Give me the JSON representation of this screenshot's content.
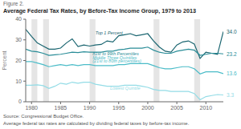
{
  "chart_data": {
    "type": "line",
    "figure_label": "Figure 2.",
    "title": "Average Federal Tax Rates, by Before-Tax Income Group, 1979 to 2013",
    "ylabel": "Percent",
    "notes": [
      "Source: Congressional Budget Office.",
      "Average federal tax rates are calculated by dividing federal taxes by before-tax income."
    ],
    "xlim": [
      1979,
      2013
    ],
    "xticks": [
      1980,
      1985,
      1990,
      1995,
      2000,
      2005,
      2010
    ],
    "ylim": [
      0,
      40
    ],
    "yticks": [
      0,
      10,
      20,
      30,
      40
    ],
    "grid": false,
    "data_labels": true,
    "recession_bands": [
      [
        1980,
        1981
      ],
      [
        1982,
        1983
      ],
      [
        1990,
        1991
      ],
      [
        2001,
        2002
      ],
      [
        2008,
        2009
      ]
    ],
    "x": [
      1979,
      1980,
      1981,
      1982,
      1983,
      1984,
      1985,
      1986,
      1987,
      1988,
      1989,
      1990,
      1991,
      1992,
      1993,
      1994,
      1995,
      1996,
      1997,
      1998,
      1999,
      2000,
      2001,
      2002,
      2003,
      2004,
      2005,
      2006,
      2007,
      2008,
      2009,
      2010,
      2011,
      2012,
      2013
    ],
    "series": [
      {
        "name": "Top 1 Percent",
        "color": "#1a6570",
        "values": [
          35.1,
          31.7,
          28.5,
          27.0,
          25.5,
          25.5,
          26.0,
          28.5,
          30.5,
          26.8,
          27.5,
          27.0,
          27.5,
          27.8,
          29.5,
          29.0,
          32.0,
          32.5,
          33.0,
          32.0,
          32.5,
          33.0,
          29.5,
          26.5,
          24.5,
          24.0,
          27.5,
          29.0,
          29.5,
          28.0,
          21.0,
          24.0,
          23.5,
          23.0,
          34.0
        ],
        "value_labels": [
          null,
          null,
          null,
          null,
          null,
          null,
          null,
          null,
          null,
          null,
          null,
          null,
          null,
          null,
          null,
          null,
          null,
          null,
          null,
          null,
          null,
          null,
          null,
          null,
          null,
          null,
          null,
          null,
          null,
          null,
          null,
          null,
          null,
          null,
          "34.0"
        ]
      },
      {
        "name": "81st to 99th Percentiles",
        "color": "#2a8d98",
        "values": [
          25.5,
          24.5,
          24.2,
          23.5,
          22.5,
          22.8,
          23.0,
          23.5,
          24.0,
          23.8,
          24.2,
          24.0,
          24.0,
          24.0,
          24.5,
          24.5,
          25.2,
          25.5,
          26.0,
          26.0,
          26.0,
          26.5,
          25.0,
          24.0,
          23.5,
          23.5,
          24.5,
          25.0,
          25.5,
          25.0,
          22.5,
          23.0,
          23.5,
          23.5,
          23.2
        ],
        "value_labels": [
          null,
          null,
          null,
          null,
          null,
          null,
          null,
          null,
          null,
          null,
          null,
          null,
          null,
          null,
          null,
          null,
          null,
          null,
          null,
          null,
          null,
          null,
          null,
          null,
          null,
          null,
          null,
          null,
          null,
          null,
          null,
          null,
          null,
          null,
          "23.2"
        ]
      },
      {
        "name": "Middle Three Quintiles",
        "color": "#4bbcc8",
        "values": [
          19.5,
          19.5,
          18.8,
          18.0,
          17.0,
          17.5,
          18.0,
          17.5,
          18.0,
          17.5,
          18.0,
          18.0,
          17.5,
          17.5,
          17.5,
          17.5,
          18.0,
          18.0,
          18.5,
          18.5,
          18.5,
          18.5,
          17.5,
          16.5,
          16.0,
          16.0,
          16.5,
          17.0,
          17.0,
          16.0,
          13.5,
          14.5,
          14.5,
          14.5,
          13.6
        ],
        "value_labels": [
          null,
          null,
          null,
          null,
          null,
          null,
          null,
          null,
          null,
          null,
          null,
          null,
          null,
          null,
          null,
          null,
          null,
          null,
          null,
          null,
          null,
          null,
          null,
          null,
          null,
          null,
          null,
          null,
          null,
          null,
          null,
          null,
          null,
          null,
          "13.6"
        ]
      },
      {
        "name": "Lowest Quintile",
        "color": "#93dce6",
        "values": [
          8.0,
          8.0,
          8.2,
          7.8,
          6.5,
          7.5,
          9.0,
          8.5,
          9.5,
          9.0,
          9.5,
          9.5,
          8.5,
          8.0,
          7.5,
          7.5,
          7.5,
          8.0,
          8.0,
          8.0,
          7.5,
          7.0,
          6.0,
          5.5,
          5.5,
          5.0,
          5.0,
          5.0,
          5.0,
          4.0,
          1.0,
          2.5,
          3.0,
          3.5,
          3.3
        ],
        "value_labels": [
          null,
          null,
          null,
          null,
          null,
          null,
          null,
          null,
          null,
          null,
          null,
          null,
          null,
          null,
          null,
          null,
          null,
          null,
          null,
          null,
          null,
          null,
          null,
          null,
          null,
          null,
          null,
          null,
          null,
          null,
          null,
          null,
          null,
          null,
          "3.3"
        ]
      }
    ],
    "annotations": [
      {
        "text": "Top 1 Percent",
        "x": 1991.0,
        "y": 32.5,
        "color": "#1a6570"
      },
      {
        "text": "81st to 99th Percentiles",
        "x": 1990.5,
        "y": 22.5,
        "color": "#2a8d98"
      },
      {
        "text": "Middle Three Quintiles",
        "x": 1990.5,
        "y": 20.5,
        "color": "#4bbcc8"
      },
      {
        "text": "(21st to 80th percentiles)",
        "x": 1990.5,
        "y": 19.0,
        "color": "#4bbcc8"
      },
      {
        "text": "Lowest Quintile",
        "x": 1993.5,
        "y": 5.8,
        "color": "#93dce6"
      }
    ]
  }
}
